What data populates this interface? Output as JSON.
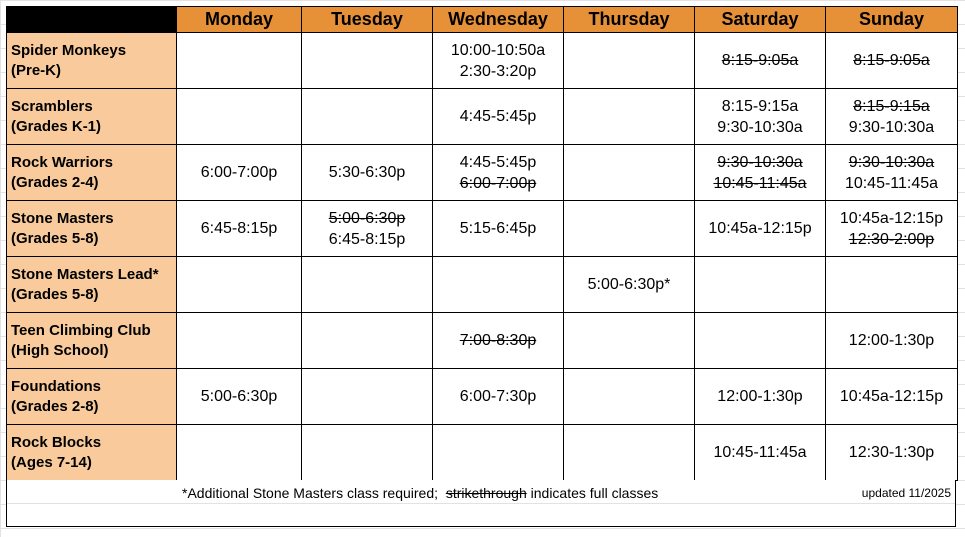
{
  "days": [
    "Monday",
    "Tuesday",
    "Wednesday",
    "Thursday",
    "Saturday",
    "Sunday"
  ],
  "colors": {
    "header": "#e69138",
    "row_header": "#f9cb9c",
    "corner": "#000000"
  },
  "classes": [
    {
      "name": "Spider Monkeys",
      "group": "(Pre-K)",
      "cells": [
        [],
        [],
        [
          {
            "t": "10:00-10:50a",
            "full": false
          },
          {
            "t": "2:30-3:20p",
            "full": false
          }
        ],
        [],
        [
          {
            "t": "8:15-9:05a",
            "full": true
          }
        ],
        [
          {
            "t": "8:15-9:05a",
            "full": true
          }
        ]
      ]
    },
    {
      "name": "Scramblers",
      "group": "(Grades K-1)",
      "cells": [
        [],
        [],
        [
          {
            "t": "4:45-5:45p",
            "full": false
          }
        ],
        [],
        [
          {
            "t": "8:15-9:15a",
            "full": false
          },
          {
            "t": "9:30-10:30a",
            "full": false
          }
        ],
        [
          {
            "t": "8:15-9:15a",
            "full": true
          },
          {
            "t": "9:30-10:30a",
            "full": false
          }
        ]
      ]
    },
    {
      "name": "Rock Warriors",
      "group": "(Grades 2-4)",
      "cells": [
        [
          {
            "t": "6:00-7:00p",
            "full": false
          }
        ],
        [
          {
            "t": "5:30-6:30p",
            "full": false
          }
        ],
        [
          {
            "t": "4:45-5:45p",
            "full": false
          },
          {
            "t": "6:00-7:00p",
            "full": true
          }
        ],
        [],
        [
          {
            "t": "9:30-10:30a",
            "full": true
          },
          {
            "t": "10:45-11:45a",
            "full": true
          }
        ],
        [
          {
            "t": "9:30-10:30a",
            "full": true
          },
          {
            "t": "10:45-11:45a",
            "full": false
          }
        ]
      ]
    },
    {
      "name": "Stone Masters",
      "group": "(Grades 5-8)",
      "cells": [
        [
          {
            "t": "6:45-8:15p",
            "full": false
          }
        ],
        [
          {
            "t": "5:00-6:30p",
            "full": true
          },
          {
            "t": "6:45-8:15p",
            "full": false
          }
        ],
        [
          {
            "t": "5:15-6:45p",
            "full": false
          }
        ],
        [],
        [
          {
            "t": "10:45a-12:15p",
            "full": false
          }
        ],
        [
          {
            "t": "10:45a-12:15p",
            "full": false
          },
          {
            "t": "12:30-2:00p",
            "full": true
          }
        ]
      ]
    },
    {
      "name": "Stone Masters Lead*",
      "group": "(Grades 5-8)",
      "cells": [
        [],
        [],
        [],
        [
          {
            "t": "5:00-6:30p*",
            "full": false
          }
        ],
        [],
        []
      ]
    },
    {
      "name": "Teen Climbing Club",
      "group": "(High School)",
      "cells": [
        [],
        [],
        [
          {
            "t": "7:00-8:30p",
            "full": true
          }
        ],
        [],
        [],
        [
          {
            "t": "12:00-1:30p",
            "full": false
          }
        ]
      ]
    },
    {
      "name": "Foundations",
      "group": "(Grades 2-8)",
      "cells": [
        [
          {
            "t": "5:00-6:30p",
            "full": false
          }
        ],
        [],
        [
          {
            "t": "6:00-7:30p",
            "full": false
          }
        ],
        [],
        [
          {
            "t": "12:00-1:30p",
            "full": false
          }
        ],
        [
          {
            "t": "10:45a-12:15p",
            "full": false
          }
        ]
      ]
    },
    {
      "name": "Rock Blocks",
      "group": "(Ages 7-14)",
      "cells": [
        [],
        [],
        [],
        [],
        [
          {
            "t": "10:45-11:45a",
            "full": false
          }
        ],
        [
          {
            "t": "12:30-1:30p",
            "full": false
          }
        ]
      ]
    }
  ],
  "footer": {
    "note_prefix": "*Additional Stone Masters class required;  ",
    "note_struck": "strikethrough",
    "note_suffix": " indicates full classes",
    "updated": "updated 11/2025"
  }
}
